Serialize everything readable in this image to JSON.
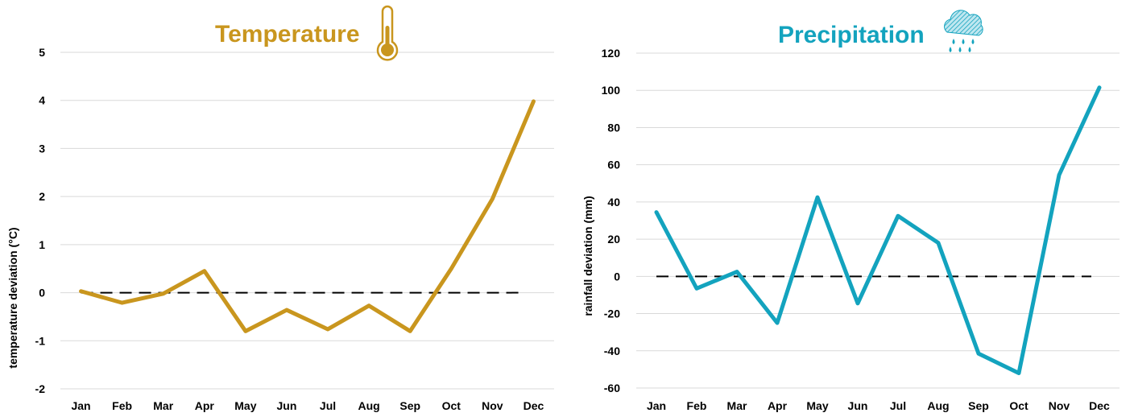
{
  "colors": {
    "temperature": "#C9961E",
    "precipitation": "#13A3BE",
    "grid": "#D9D9D9",
    "baseline": "#000000"
  },
  "chart_data": [
    {
      "type": "line",
      "title": "Temperature",
      "title_icon": "thermometer-icon",
      "xlabel": "",
      "ylabel": "temperature deviation (°C)",
      "categories": [
        "Jan",
        "Feb",
        "Mar",
        "Apr",
        "May",
        "Jun",
        "Jul",
        "Aug",
        "Sep",
        "Oct",
        "Nov",
        "Dec"
      ],
      "series": [
        {
          "values": [
            0.03,
            -0.21,
            -0.02,
            0.45,
            -0.8,
            -0.36,
            -0.76,
            -0.27,
            -0.8,
            0.5,
            1.95,
            3.98
          ]
        }
      ],
      "baseline": 0,
      "ylim": [
        -2,
        5
      ],
      "yticks": [
        -2,
        -1,
        0,
        1,
        2,
        3,
        4,
        5
      ],
      "grid": true,
      "color": "#C9961E"
    },
    {
      "type": "line",
      "title": "Precipitation",
      "title_icon": "rain-cloud-icon",
      "xlabel": "",
      "ylabel": "rainfall deviation (mm)",
      "categories": [
        "Jan",
        "Feb",
        "Mar",
        "Apr",
        "May",
        "Jun",
        "Jul",
        "Aug",
        "Sep",
        "Oct",
        "Nov",
        "Dec"
      ],
      "series": [
        {
          "values": [
            34.5,
            -6.5,
            2.5,
            -25,
            42.5,
            -14.5,
            32.5,
            18,
            -41.5,
            -52,
            54.5,
            101.5
          ]
        }
      ],
      "baseline": 0,
      "ylim": [
        -60,
        120
      ],
      "yticks": [
        -60,
        -40,
        -20,
        0,
        20,
        40,
        60,
        80,
        100,
        120
      ],
      "grid": true,
      "color": "#13A3BE"
    }
  ]
}
